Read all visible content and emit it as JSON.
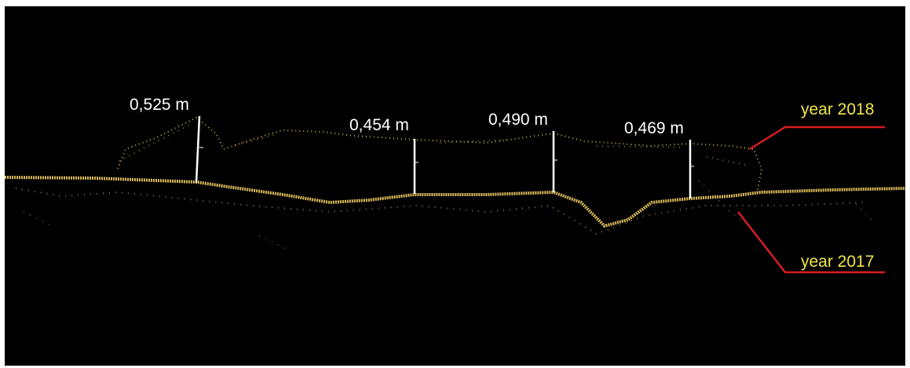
{
  "measurements": [
    "0,525 m",
    "0,454 m",
    "0,490 m",
    "0,469 m"
  ],
  "years": [
    "year 2018",
    "year 2017"
  ]
}
